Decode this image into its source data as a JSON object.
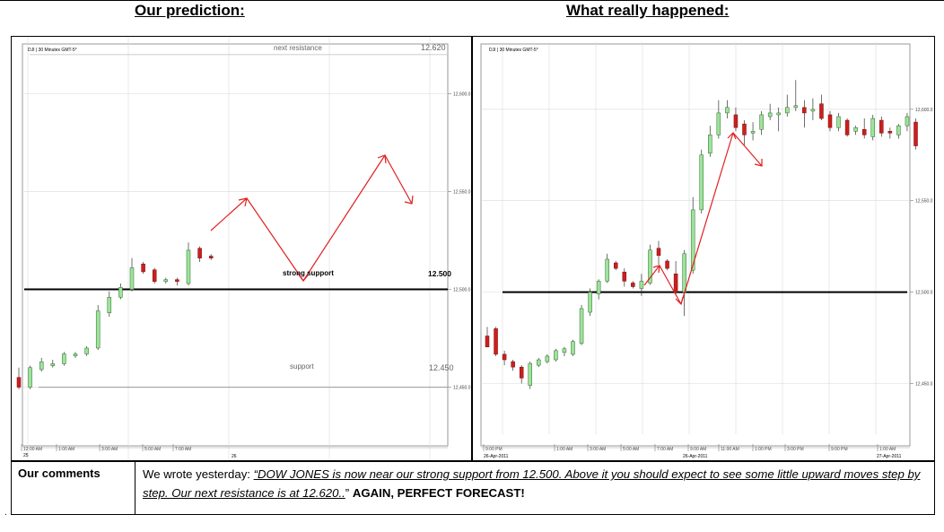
{
  "headings": {
    "left": "Our prediction:",
    "right": "What really happened:"
  },
  "chart_data": [
    {
      "type": "candlestick",
      "title": "Our prediction:",
      "instrument": "DJI | 30 Minutes GMT-5*",
      "y_axis": {
        "ticks": [
          "12,600.0",
          "12,550.0",
          "12,500.0",
          "12,450.0"
        ],
        "range": [
          12420,
          12625
        ]
      },
      "x_axis": {
        "ticks": [
          "12:00 AM",
          "1:00 AM",
          "3:00 AM",
          "5:00 AM",
          "7:00 AM"
        ],
        "date_label": "26",
        "left_label": "25"
      },
      "levels": [
        {
          "label": "next resistance",
          "value_label": "12.620",
          "value": 12620
        },
        {
          "label": "strong support",
          "value_label": "12.500",
          "value": 12500
        },
        {
          "label": "support",
          "value_label": "12.450",
          "value": 12450
        }
      ],
      "candles": [
        {
          "o": 12455,
          "h": 12460,
          "l": 12449,
          "c": 12450
        },
        {
          "o": 12450,
          "h": 12461,
          "l": 12449,
          "c": 12460
        },
        {
          "o": 12459,
          "h": 12465,
          "l": 12458,
          "c": 12463
        },
        {
          "o": 12461,
          "h": 12464,
          "l": 12460,
          "c": 12462
        },
        {
          "o": 12462,
          "h": 12468,
          "l": 12461,
          "c": 12467
        },
        {
          "o": 12466,
          "h": 12468,
          "l": 12465,
          "c": 12467
        },
        {
          "o": 12467,
          "h": 12471,
          "l": 12466,
          "c": 12470
        },
        {
          "o": 12470,
          "h": 12492,
          "l": 12469,
          "c": 12489
        },
        {
          "o": 12488,
          "h": 12499,
          "l": 12486,
          "c": 12496
        },
        {
          "o": 12496,
          "h": 12503,
          "l": 12495,
          "c": 12501
        },
        {
          "o": 12500,
          "h": 12516,
          "l": 12499,
          "c": 12511
        },
        {
          "o": 12513,
          "h": 12514,
          "l": 12508,
          "c": 12509
        },
        {
          "o": 12510,
          "h": 12511,
          "l": 12503,
          "c": 12504
        },
        {
          "o": 12504,
          "h": 12506,
          "l": 12503,
          "c": 12505
        },
        {
          "o": 12505,
          "h": 12506,
          "l": 12502,
          "c": 12504
        },
        {
          "o": 12503,
          "h": 12524,
          "l": 12502,
          "c": 12520
        },
        {
          "o": 12521,
          "h": 12522,
          "l": 12514,
          "c": 12516
        },
        {
          "o": 12517,
          "h": 12518,
          "l": 12515,
          "c": 12516
        }
      ]
    },
    {
      "type": "candlestick",
      "title": "What really happened:",
      "instrument": "DJI | 30 Minutes GMT-5*",
      "y_axis": {
        "ticks": [
          "12,600.0",
          "12,550.0",
          "12,500.0",
          "12,450.0"
        ],
        "range": [
          12437,
          12622
        ]
      },
      "x_axis": {
        "ticks": [
          "9:00 PM",
          "1:00 AM",
          "3:00 AM",
          "5:00 AM",
          "7:00 AM",
          "9:00 AM",
          "11:00 AM",
          "1:00 PM",
          "3:00 PM",
          "9:00 PM",
          "1:00 AM"
        ],
        "date_labels": [
          "26-Apr-2011",
          "26-Apr-2011",
          "27-Apr-2011"
        ]
      },
      "levels": [
        {
          "value": 12500
        }
      ],
      "candles": [
        {
          "o": 12476,
          "h": 12481,
          "l": 12470,
          "c": 12470
        },
        {
          "o": 12480,
          "h": 12481,
          "l": 12465,
          "c": 12466
        },
        {
          "o": 12466,
          "h": 12468,
          "l": 12460,
          "c": 12463
        },
        {
          "o": 12462,
          "h": 12463,
          "l": 12457,
          "c": 12459
        },
        {
          "o": 12459,
          "h": 12460,
          "l": 12450,
          "c": 12453
        },
        {
          "o": 12449,
          "h": 12462,
          "l": 12447,
          "c": 12461
        },
        {
          "o": 12460,
          "h": 12464,
          "l": 12459,
          "c": 12463
        },
        {
          "o": 12462,
          "h": 12466,
          "l": 12461,
          "c": 12465
        },
        {
          "o": 12463,
          "h": 12469,
          "l": 12462,
          "c": 12468
        },
        {
          "o": 12467,
          "h": 12470,
          "l": 12465,
          "c": 12469
        },
        {
          "o": 12466,
          "h": 12474,
          "l": 12465,
          "c": 12473
        },
        {
          "o": 12472,
          "h": 12493,
          "l": 12471,
          "c": 12491
        },
        {
          "o": 12489,
          "h": 12502,
          "l": 12487,
          "c": 12500
        },
        {
          "o": 12499,
          "h": 12507,
          "l": 12496,
          "c": 12506
        },
        {
          "o": 12506,
          "h": 12521,
          "l": 12505,
          "c": 12518
        },
        {
          "o": 12516,
          "h": 12517,
          "l": 12512,
          "c": 12513
        },
        {
          "o": 12511,
          "h": 12513,
          "l": 12503,
          "c": 12506
        },
        {
          "o": 12505,
          "h": 12506,
          "l": 12502,
          "c": 12503
        },
        {
          "o": 12502,
          "h": 12510,
          "l": 12498,
          "c": 12506
        },
        {
          "o": 12505,
          "h": 12526,
          "l": 12504,
          "c": 12523
        },
        {
          "o": 12524,
          "h": 12528,
          "l": 12515,
          "c": 12520
        },
        {
          "o": 12517,
          "h": 12518,
          "l": 12512,
          "c": 12513
        },
        {
          "o": 12510,
          "h": 12517,
          "l": 12499,
          "c": 12500
        },
        {
          "o": 12500,
          "h": 12523,
          "l": 12487,
          "c": 12521
        },
        {
          "o": 12512,
          "h": 12552,
          "l": 12510,
          "c": 12545
        },
        {
          "o": 12545,
          "h": 12578,
          "l": 12543,
          "c": 12575
        },
        {
          "o": 12576,
          "h": 12591,
          "l": 12574,
          "c": 12586
        },
        {
          "o": 12586,
          "h": 12605,
          "l": 12584,
          "c": 12598
        },
        {
          "o": 12598,
          "h": 12605,
          "l": 12595,
          "c": 12601
        },
        {
          "o": 12597,
          "h": 12601,
          "l": 12588,
          "c": 12590
        },
        {
          "o": 12592,
          "h": 12594,
          "l": 12580,
          "c": 12586
        },
        {
          "o": 12587,
          "h": 12593,
          "l": 12583,
          "c": 12588
        },
        {
          "o": 12589,
          "h": 12599,
          "l": 12586,
          "c": 12597
        },
        {
          "o": 12596,
          "h": 12603,
          "l": 12594,
          "c": 12598
        },
        {
          "o": 12597,
          "h": 12601,
          "l": 12588,
          "c": 12598
        },
        {
          "o": 12598,
          "h": 12608,
          "l": 12596,
          "c": 12601
        },
        {
          "o": 12601,
          "h": 12616,
          "l": 12599,
          "c": 12602
        },
        {
          "o": 12601,
          "h": 12605,
          "l": 12590,
          "c": 12598
        },
        {
          "o": 12599,
          "h": 12606,
          "l": 12594,
          "c": 12600
        },
        {
          "o": 12603,
          "h": 12608,
          "l": 12594,
          "c": 12595
        },
        {
          "o": 12597,
          "h": 12599,
          "l": 12588,
          "c": 12590
        },
        {
          "o": 12590,
          "h": 12598,
          "l": 12588,
          "c": 12596
        },
        {
          "o": 12594,
          "h": 12595,
          "l": 12585,
          "c": 12586
        },
        {
          "o": 12588,
          "h": 12591,
          "l": 12586,
          "c": 12590
        },
        {
          "o": 12589,
          "h": 12595,
          "l": 12584,
          "c": 12586
        },
        {
          "o": 12585,
          "h": 12597,
          "l": 12583,
          "c": 12595
        },
        {
          "o": 12594,
          "h": 12596,
          "l": 12585,
          "c": 12587
        },
        {
          "o": 12588,
          "h": 12590,
          "l": 12584,
          "c": 12587
        },
        {
          "o": 12586,
          "h": 12592,
          "l": 12584,
          "c": 12591
        },
        {
          "o": 12591,
          "h": 12598,
          "l": 12588,
          "c": 12596
        },
        {
          "o": 12593,
          "h": 12595,
          "l": 12578,
          "c": 12580
        }
      ]
    }
  ],
  "comments": {
    "title": "Our comments",
    "intro": "We wrote yesterday: ",
    "quote": "“DOW JONES is now near our strong support from 12.500. Above it you should expect to see some little upward moves step by step. Our next resistance is at 12.620..",
    "close_quote": "” ",
    "emphasis": "AGAIN, PERFECT FORECAST!"
  },
  "footer_mark": ".",
  "colors": {
    "bull": "#9ee39b",
    "bear": "#cc1f1f",
    "arrow": "#e02020",
    "grid": "#dadada",
    "level": "#000000"
  }
}
